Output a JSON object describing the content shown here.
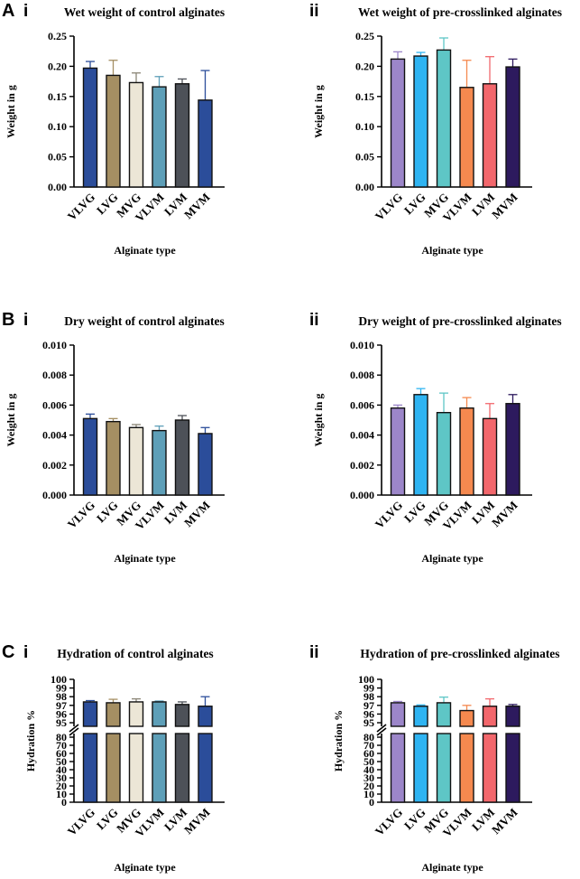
{
  "figure": {
    "panels": [
      {
        "letter": "A",
        "sub": [
          "i",
          "ii"
        ]
      },
      {
        "letter": "B",
        "sub": [
          "i",
          "ii"
        ]
      },
      {
        "letter": "C",
        "sub": [
          "i",
          "ii"
        ]
      }
    ]
  },
  "chart_data": [
    {
      "id": "Ai",
      "type": "bar",
      "title": "Wet weight of control alginates",
      "xlabel": "Alginate type",
      "ylabel": "Weight in g",
      "categories": [
        "VLVG",
        "LVG",
        "MVG",
        "VLVM",
        "LVM",
        "MVM"
      ],
      "values": [
        0.197,
        0.185,
        0.173,
        0.166,
        0.171,
        0.144
      ],
      "errors": [
        0.011,
        0.025,
        0.016,
        0.017,
        0.008,
        0.049
      ],
      "ylim": [
        0,
        0.25
      ],
      "yticks": [
        0,
        0.05,
        0.1,
        0.15,
        0.2,
        0.25
      ],
      "ytick_labels": [
        "0.00",
        "0.05",
        "0.10",
        "0.15",
        "0.20",
        "0.25"
      ],
      "colors": [
        "#2b4d9a",
        "#a58f63",
        "#ece6d6",
        "#5e9fb8",
        "#4d5158",
        "#2b4d9a"
      ]
    },
    {
      "id": "Aii",
      "type": "bar",
      "title": "Wet weight of pre-crosslinked alginates",
      "xlabel": "Alginate type",
      "ylabel": "Weight in g",
      "categories": [
        "VLVG",
        "LVG",
        "MVG",
        "VLVM",
        "LVM",
        "MVM"
      ],
      "values": [
        0.212,
        0.217,
        0.227,
        0.165,
        0.171,
        0.199
      ],
      "errors": [
        0.012,
        0.006,
        0.02,
        0.045,
        0.045,
        0.013
      ],
      "ylim": [
        0,
        0.25
      ],
      "yticks": [
        0,
        0.05,
        0.1,
        0.15,
        0.2,
        0.25
      ],
      "ytick_labels": [
        "0.00",
        "0.05",
        "0.10",
        "0.15",
        "0.20",
        "0.25"
      ],
      "colors": [
        "#9c86c9",
        "#2fb4f2",
        "#5ec6c6",
        "#f5894f",
        "#f2676c",
        "#2d1a5e"
      ]
    },
    {
      "id": "Bi",
      "type": "bar",
      "title": "Dry weight of control alginates",
      "xlabel": "Alginate type",
      "ylabel": "Weight in g",
      "categories": [
        "VLVG",
        "LVG",
        "MVG",
        "VLVM",
        "LVM",
        "MVM"
      ],
      "values": [
        0.0051,
        0.0049,
        0.0045,
        0.0043,
        0.005,
        0.0041
      ],
      "errors": [
        0.0003,
        0.0002,
        0.0002,
        0.0003,
        0.0003,
        0.0004
      ],
      "ylim": [
        0,
        0.01
      ],
      "yticks": [
        0,
        0.002,
        0.004,
        0.006,
        0.008,
        0.01
      ],
      "ytick_labels": [
        "0.000",
        "0.002",
        "0.004",
        "0.006",
        "0.008",
        "0.010"
      ],
      "colors": [
        "#2b4d9a",
        "#a58f63",
        "#ece6d6",
        "#5e9fb8",
        "#4d5158",
        "#2b4d9a"
      ]
    },
    {
      "id": "Bii",
      "type": "bar",
      "title": "Dry weight of pre-crosslinked alginates",
      "xlabel": "Alginate type",
      "ylabel": "Weight in g",
      "categories": [
        "VLVG",
        "LVG",
        "MVG",
        "VLVM",
        "LVM",
        "MVM"
      ],
      "values": [
        0.0058,
        0.0067,
        0.0055,
        0.0058,
        0.0051,
        0.0061
      ],
      "errors": [
        0.0002,
        0.0004,
        0.0013,
        0.0007,
        0.001,
        0.0006
      ],
      "ylim": [
        0,
        0.01
      ],
      "yticks": [
        0,
        0.002,
        0.004,
        0.006,
        0.008,
        0.01
      ],
      "ytick_labels": [
        "0.000",
        "0.002",
        "0.004",
        "0.006",
        "0.008",
        "0.010"
      ],
      "colors": [
        "#9c86c9",
        "#2fb4f2",
        "#5ec6c6",
        "#f5894f",
        "#f2676c",
        "#2d1a5e"
      ]
    },
    {
      "id": "Ci",
      "type": "bar",
      "broken_axis": true,
      "title": "Hydration of control alginates",
      "xlabel": "Alginate type",
      "ylabel": "Hydration %",
      "categories": [
        "VLVG",
        "LVG",
        "MVG",
        "VLVM",
        "LVM",
        "MVM"
      ],
      "values": [
        97.4,
        97.3,
        97.4,
        97.4,
        97.1,
        96.9
      ],
      "errors": [
        0.15,
        0.4,
        0.35,
        0.1,
        0.3,
        1.1
      ],
      "upper_range": [
        95,
        100
      ],
      "upper_ticks": [
        95,
        96,
        97,
        98,
        99,
        100
      ],
      "lower_range": [
        0,
        80
      ],
      "lower_ticks": [
        0,
        10,
        20,
        30,
        40,
        50,
        60,
        70,
        80
      ],
      "colors": [
        "#2b4d9a",
        "#a58f63",
        "#ece6d6",
        "#5e9fb8",
        "#4d5158",
        "#2b4d9a"
      ]
    },
    {
      "id": "Cii",
      "type": "bar",
      "broken_axis": true,
      "title": "Hydration of pre-crosslinked alginates",
      "xlabel": "Alginate type",
      "ylabel": "Hydration %",
      "categories": [
        "VLVG",
        "LVG",
        "MVG",
        "VLVM",
        "LVM",
        "MVM"
      ],
      "values": [
        97.3,
        96.9,
        97.3,
        96.4,
        96.9,
        96.9
      ],
      "errors": [
        0.15,
        0.15,
        0.65,
        0.6,
        0.85,
        0.2
      ],
      "upper_range": [
        95,
        100
      ],
      "upper_ticks": [
        95,
        96,
        97,
        98,
        99,
        100
      ],
      "lower_range": [
        0,
        80
      ],
      "lower_ticks": [
        0,
        10,
        20,
        30,
        40,
        50,
        60,
        70,
        80
      ],
      "colors": [
        "#9c86c9",
        "#2fb4f2",
        "#5ec6c6",
        "#f5894f",
        "#f2676c",
        "#2d1a5e"
      ]
    }
  ]
}
